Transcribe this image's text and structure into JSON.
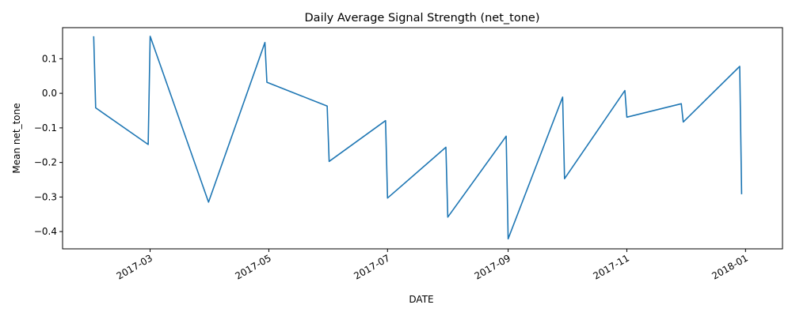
{
  "chart_data": {
    "type": "line",
    "title": "Daily Average Signal Strength (net_tone)",
    "xlabel": "DATE",
    "ylabel": "Mean net_tone",
    "grid": false,
    "legend": "none",
    "line_color": "#1f77b4",
    "xlim": [
      "2017-01-15",
      "2018-01-20"
    ],
    "ylim": [
      -0.45,
      0.19
    ],
    "x_ticks": [
      "2017-03",
      "2017-05",
      "2017-07",
      "2017-09",
      "2017-11",
      "2018-01"
    ],
    "y_ticks": [
      "0.1",
      "0.0",
      "−0.1",
      "−0.2",
      "−0.3",
      "−0.4"
    ],
    "y_tick_values": [
      0.1,
      0.0,
      -0.1,
      -0.2,
      -0.3,
      -0.4
    ],
    "series": [
      {
        "x": [
          "2017-01-31",
          "2017-02-01",
          "2017-02-28",
          "2017-03-01",
          "2017-03-31",
          "2017-04-29",
          "2017-04-30",
          "2017-05-31",
          "2017-06-01",
          "2017-06-30",
          "2017-07-01",
          "2017-07-31",
          "2017-08-01",
          "2017-08-31",
          "2017-09-01",
          "2017-09-29",
          "2017-09-30",
          "2017-10-31",
          "2017-11-01",
          "2017-11-29",
          "2017-11-30",
          "2017-12-29",
          "2017-12-30"
        ],
        "y": [
          0.165,
          -0.042,
          -0.148,
          0.165,
          -0.315,
          0.147,
          0.032,
          -0.037,
          -0.197,
          -0.079,
          -0.303,
          -0.156,
          -0.358,
          -0.124,
          -0.421,
          -0.011,
          -0.247,
          0.008,
          -0.069,
          -0.03,
          -0.083,
          0.078,
          -0.292
        ]
      }
    ]
  }
}
